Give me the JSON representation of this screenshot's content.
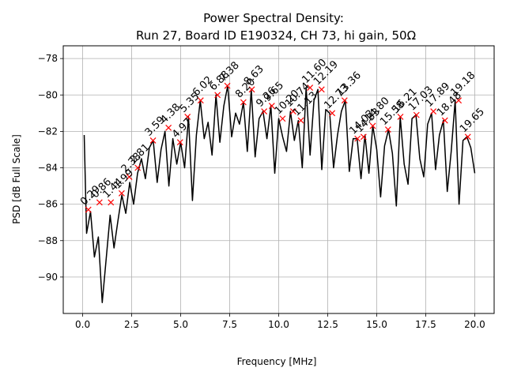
{
  "chart_data": {
    "type": "line",
    "title": "Power Spectral Density:",
    "subtitle": "Run 27, Board ID E190324, CH 73, hi gain, 50Ω",
    "xlabel": "Frequency [MHz]",
    "ylabel": "PSD [dB Full Scale]",
    "xlim": [
      -0.99,
      20.99
    ],
    "ylim": [
      -92.0,
      -77.3
    ],
    "xticks": [
      0.0,
      2.5,
      5.0,
      7.5,
      10.0,
      12.5,
      15.0,
      17.5,
      20.0
    ],
    "xtick_labels": [
      "0.0",
      "2.5",
      "5.0",
      "7.5",
      "10.0",
      "12.5",
      "15.0",
      "17.5",
      "20.0"
    ],
    "yticks": [
      -90,
      -88,
      -86,
      -84,
      -82,
      -80,
      -78
    ],
    "ytick_labels": [
      "−90",
      "−88",
      "−86",
      "−84",
      "−82",
      "−80",
      "−78"
    ],
    "grid": true,
    "colors": {
      "line": "#000000",
      "markers": "#ff0000",
      "grid": "#b0b0b0"
    },
    "series": [
      {
        "x": [
          0.08,
          0.2,
          0.4,
          0.6,
          0.8,
          1.0,
          1.2,
          1.4,
          1.6,
          1.8,
          2.0,
          2.2,
          2.4,
          2.6,
          2.8,
          3.0,
          3.2,
          3.4,
          3.6,
          3.8,
          4.0,
          4.2,
          4.4,
          4.6,
          4.8,
          5.0,
          5.2,
          5.4,
          5.6,
          5.8,
          6.0,
          6.2,
          6.4,
          6.6,
          6.8,
          7.0,
          7.2,
          7.4,
          7.6,
          7.8,
          8.0,
          8.2,
          8.4,
          8.6,
          8.8,
          9.0,
          9.2,
          9.4,
          9.6,
          9.8,
          10.0,
          10.2,
          10.4,
          10.6,
          10.8,
          11.0,
          11.2,
          11.4,
          11.6,
          11.8,
          12.0,
          12.2,
          12.4,
          12.6,
          12.8,
          13.0,
          13.2,
          13.4,
          13.6,
          13.8,
          14.0,
          14.2,
          14.4,
          14.6,
          14.8,
          15.0,
          15.2,
          15.4,
          15.6,
          15.8,
          16.0,
          16.2,
          16.4,
          16.6,
          16.8,
          17.0,
          17.2,
          17.4,
          17.6,
          17.8,
          18.0,
          18.2,
          18.4,
          18.6,
          18.8,
          19.0,
          19.2,
          19.4,
          19.6,
          19.8,
          20.0
        ],
        "y": [
          -82.2,
          -87.6,
          -86.4,
          -88.9,
          -87.8,
          -91.4,
          -89.0,
          -86.6,
          -88.4,
          -86.9,
          -85.5,
          -86.5,
          -84.8,
          -86.0,
          -84.3,
          -83.5,
          -84.6,
          -82.9,
          -82.5,
          -84.8,
          -83.0,
          -82.0,
          -85.0,
          -82.4,
          -83.8,
          -82.6,
          -84.0,
          -81.2,
          -85.8,
          -82.2,
          -80.3,
          -82.4,
          -81.5,
          -83.3,
          -80.0,
          -82.6,
          -80.6,
          -79.5,
          -82.3,
          -81.0,
          -81.6,
          -80.4,
          -83.1,
          -79.7,
          -83.4,
          -81.3,
          -80.9,
          -82.4,
          -80.6,
          -84.3,
          -81.3,
          -82.3,
          -83.1,
          -80.9,
          -82.5,
          -81.4,
          -84.0,
          -79.6,
          -83.3,
          -80.3,
          -79.7,
          -84.1,
          -80.8,
          -81.0,
          -84.0,
          -82.2,
          -80.9,
          -80.3,
          -84.2,
          -82.4,
          -82.4,
          -84.6,
          -82.2,
          -84.3,
          -81.7,
          -83.0,
          -85.6,
          -82.8,
          -81.9,
          -83.2,
          -86.1,
          -81.2,
          -83.8,
          -84.9,
          -81.3,
          -81.1,
          -83.5,
          -84.5,
          -81.6,
          -81.0,
          -84.1,
          -82.2,
          -81.4,
          -85.3,
          -83.1,
          -80.3,
          -86.0,
          -82.5,
          -82.3,
          -82.9,
          -84.3
        ]
      }
    ],
    "peaks": [
      {
        "x": 0.29,
        "y": -86.3,
        "label": "0.29"
      },
      {
        "x": 0.86,
        "y": -85.9,
        "label": "0.86"
      },
      {
        "x": 1.44,
        "y": -85.9,
        "label": "1.44"
      },
      {
        "x": 1.99,
        "y": -85.4,
        "label": "1.99"
      },
      {
        "x": 2.38,
        "y": -84.5,
        "label": "2.38"
      },
      {
        "x": 2.81,
        "y": -84.0,
        "label": "2.81"
      },
      {
        "x": 3.59,
        "y": -82.5,
        "label": "3.59"
      },
      {
        "x": 4.38,
        "y": -81.8,
        "label": "4.38"
      },
      {
        "x": 4.97,
        "y": -82.6,
        "label": "4.97"
      },
      {
        "x": 5.35,
        "y": -81.2,
        "label": "5.35"
      },
      {
        "x": 6.02,
        "y": -80.3,
        "label": "6.02"
      },
      {
        "x": 6.88,
        "y": -80.0,
        "label": "6.88"
      },
      {
        "x": 7.38,
        "y": -79.5,
        "label": "7.38"
      },
      {
        "x": 8.2,
        "y": -80.4,
        "label": "8.20"
      },
      {
        "x": 8.63,
        "y": -79.7,
        "label": "8.63"
      },
      {
        "x": 9.26,
        "y": -80.9,
        "label": "9.26"
      },
      {
        "x": 9.65,
        "y": -80.6,
        "label": "9.65"
      },
      {
        "x": 10.2,
        "y": -81.3,
        "label": "10.20"
      },
      {
        "x": 10.74,
        "y": -80.9,
        "label": "10.74"
      },
      {
        "x": 11.13,
        "y": -81.4,
        "label": "11.13"
      },
      {
        "x": 11.6,
        "y": -79.6,
        "label": "11.60"
      },
      {
        "x": 12.19,
        "y": -79.7,
        "label": "12.19"
      },
      {
        "x": 12.73,
        "y": -81.0,
        "label": "12.73"
      },
      {
        "x": 13.36,
        "y": -80.3,
        "label": "13.36"
      },
      {
        "x": 14.02,
        "y": -82.4,
        "label": "14.02"
      },
      {
        "x": 14.33,
        "y": -82.3,
        "label": "14.33"
      },
      {
        "x": 14.8,
        "y": -81.7,
        "label": "14.80"
      },
      {
        "x": 15.58,
        "y": -81.9,
        "label": "15.58"
      },
      {
        "x": 16.21,
        "y": -81.2,
        "label": "16.21"
      },
      {
        "x": 17.03,
        "y": -81.1,
        "label": "17.03"
      },
      {
        "x": 17.89,
        "y": -80.9,
        "label": "17.89"
      },
      {
        "x": 18.48,
        "y": -81.4,
        "label": "18.48"
      },
      {
        "x": 19.18,
        "y": -80.3,
        "label": "19.18"
      },
      {
        "x": 19.65,
        "y": -82.3,
        "label": "19.65"
      }
    ]
  }
}
